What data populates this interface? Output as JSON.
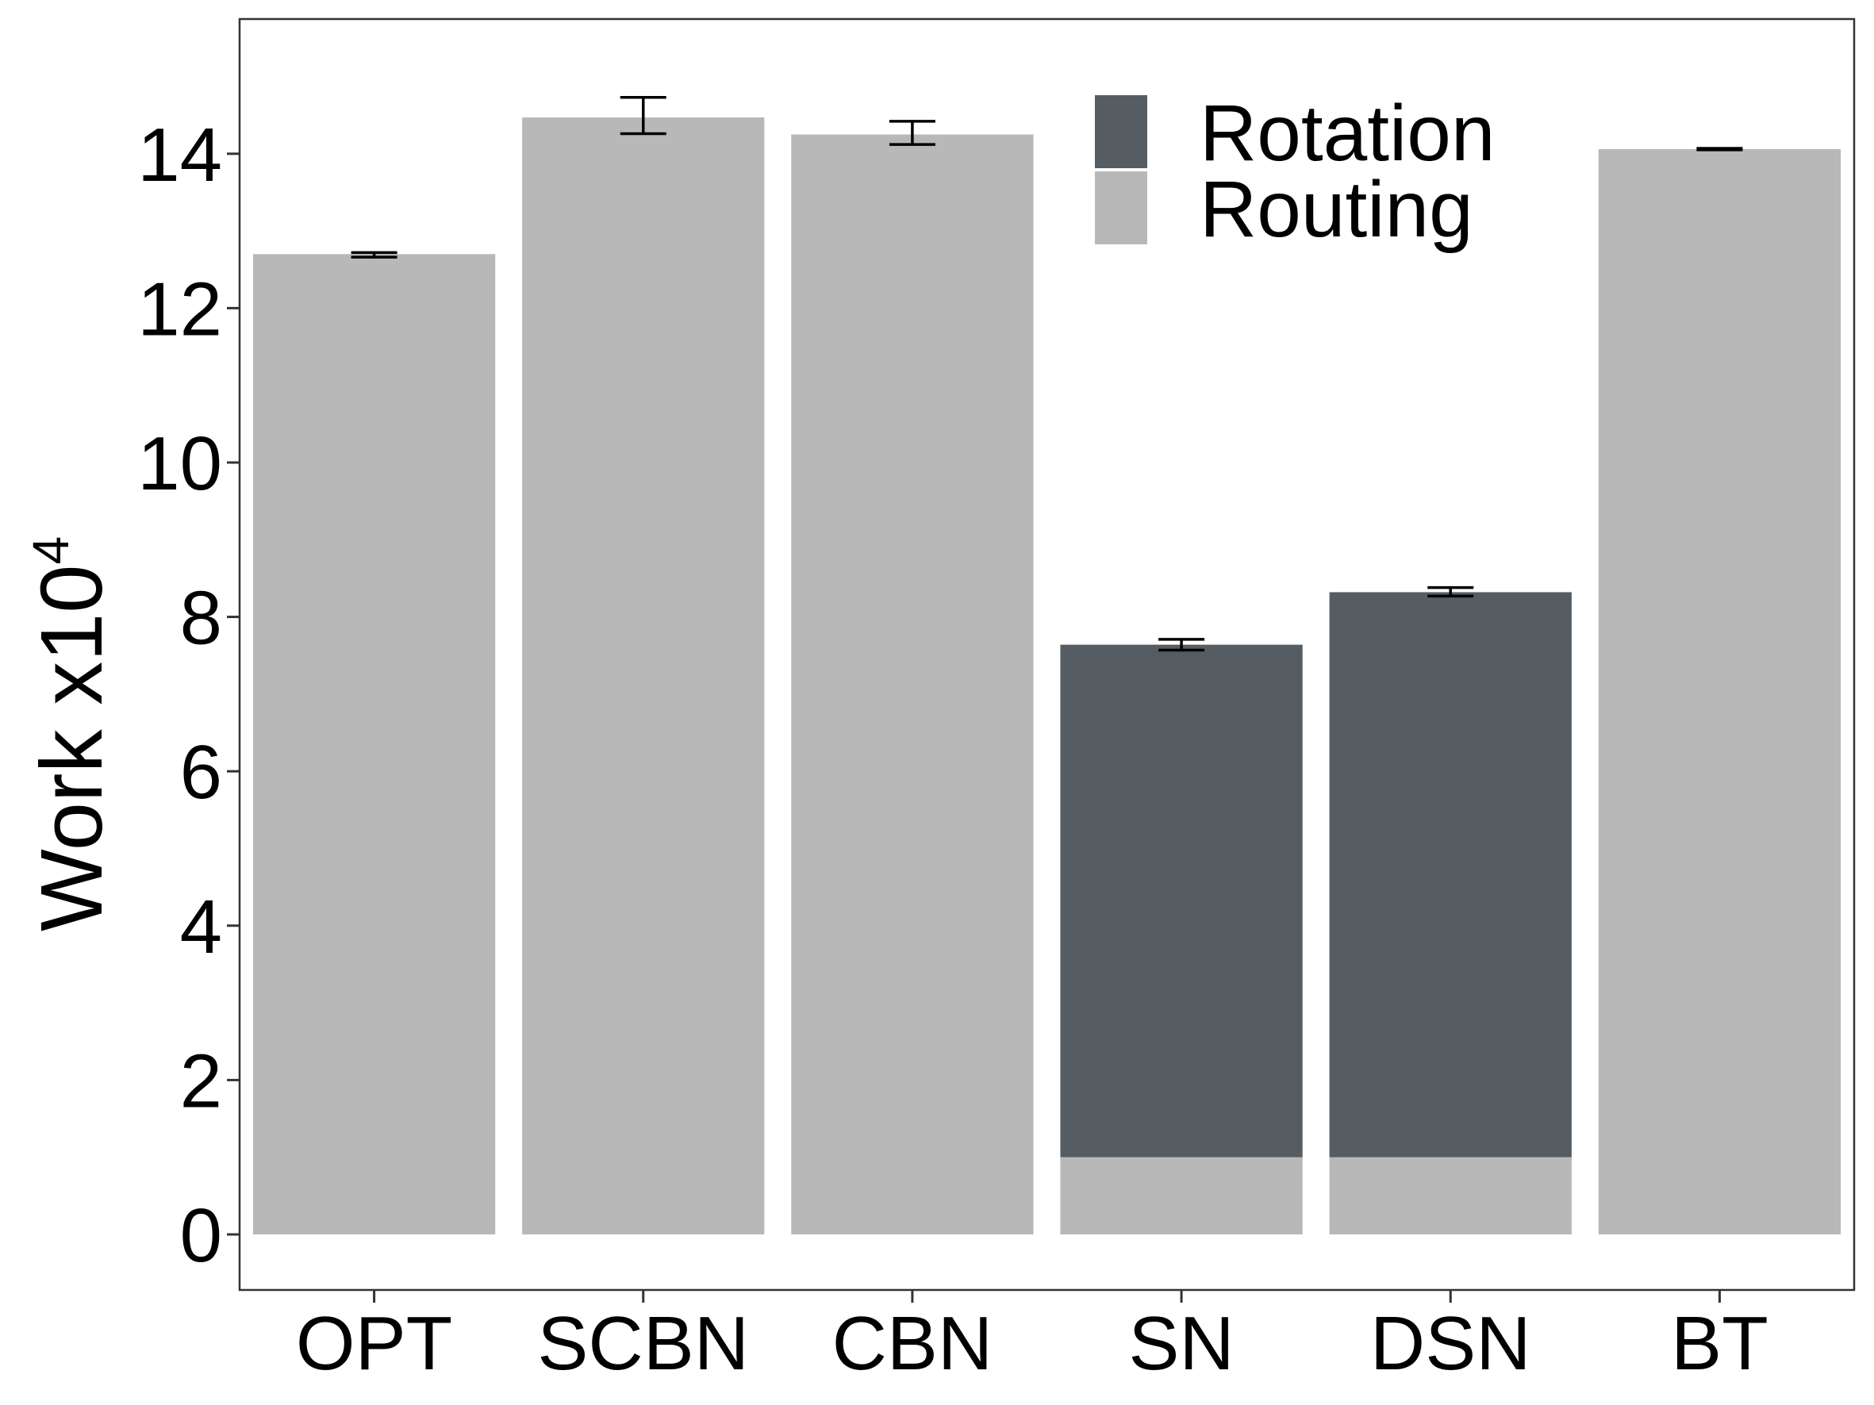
{
  "chart_data": {
    "type": "bar",
    "stacked": true,
    "categories": [
      "OPT",
      "SCBN",
      "CBN",
      "SN",
      "DSN",
      "BT"
    ],
    "series": [
      {
        "name": "Routing",
        "color": "#b8b8b8",
        "values": [
          12.7,
          14.47,
          14.25,
          1.0,
          1.0,
          14.06
        ]
      },
      {
        "name": "Rotation",
        "color": "#555d63",
        "values": [
          0.0,
          0.0,
          0.0,
          6.64,
          7.32,
          0.0
        ]
      }
    ],
    "error_bars": {
      "low": [
        12.66,
        14.26,
        14.12,
        7.57,
        8.27,
        14.05
      ],
      "high": [
        12.72,
        14.73,
        14.42,
        7.71,
        8.38,
        14.07
      ]
    },
    "ylabel": "Work x10",
    "ylabel_sup": "4",
    "ylim": [
      -0.75,
      15.75
    ],
    "yticks": [
      "0",
      "2",
      "4",
      "6",
      "8",
      "10",
      "12",
      "14"
    ],
    "legend": {
      "position": "top-right",
      "entries": [
        {
          "label": "Rotation",
          "color": "#555d63"
        },
        {
          "label": "Routing",
          "color": "#b8b8b8"
        }
      ]
    },
    "grid": false
  }
}
